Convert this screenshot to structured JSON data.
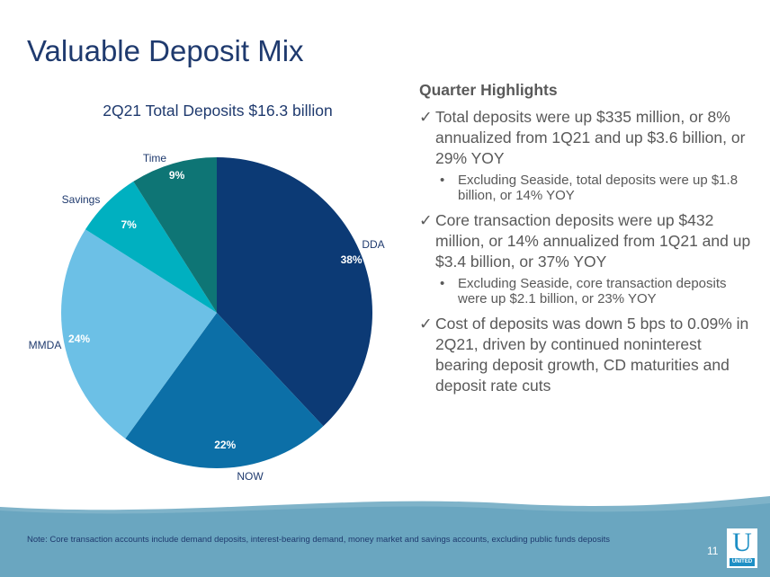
{
  "slide": {
    "title": "Valuable Deposit Mix",
    "page_number": "11",
    "logo_letter": "U",
    "logo_text": "UNITED"
  },
  "chart_data": {
    "type": "pie",
    "title": "2Q21 Total Deposits $16.3 billion",
    "slices": [
      {
        "label": "DDA",
        "value": 38,
        "display": "38%",
        "color": "#0c3a75"
      },
      {
        "label": "NOW",
        "value": 22,
        "display": "22%",
        "color": "#0c6fa7"
      },
      {
        "label": "MMDA",
        "value": 24,
        "display": "24%",
        "color": "#6cc0e6"
      },
      {
        "label": "Savings",
        "value": 7,
        "display": "7%",
        "color": "#00b0c0"
      },
      {
        "label": "Time",
        "value": 9,
        "display": "9%",
        "color": "#0e7575"
      }
    ]
  },
  "highlights": {
    "title": "Quarter Highlights",
    "check": "✓",
    "dot": "•",
    "items": [
      {
        "text": "Total deposits were up $335 million, or 8% annualized from 1Q21 and up $3.6 billion, or 29% YOY",
        "sub": "Excluding Seaside, total deposits were up $1.8 billion, or 14% YOY"
      },
      {
        "text": "Core transaction deposits were up $432 million, or 14% annualized from 1Q21 and up $3.4 billion, or 37% YOY",
        "sub": "Excluding Seaside, core transaction deposits were up $2.1 billion, or 23% YOY"
      },
      {
        "text": "Cost of deposits was down 5 bps to 0.09% in 2Q21, driven by continued noninterest bearing deposit growth, CD maturities and deposit rate cuts"
      }
    ]
  },
  "footnote": "Note: Core transaction accounts include demand deposits, interest-bearing demand, money market and savings accounts, excluding public funds deposits"
}
